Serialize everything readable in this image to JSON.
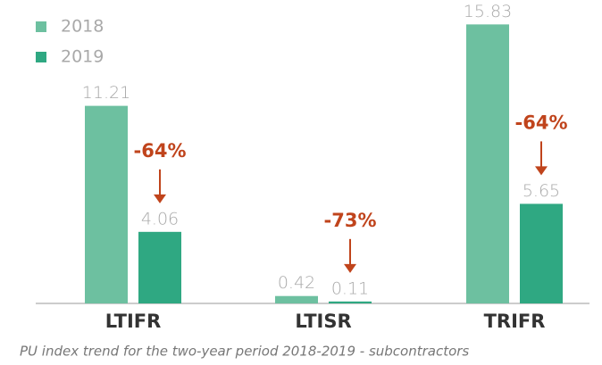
{
  "chart_data": {
    "type": "bar",
    "categories": [
      "LTIFR",
      "LTISR",
      "TRIFR"
    ],
    "series": [
      {
        "name": "2018",
        "color": "#6dc0a0",
        "values": [
          11.21,
          0.42,
          15.83
        ]
      },
      {
        "name": "2019",
        "color": "#2fa882",
        "values": [
          4.06,
          0.11,
          5.65
        ]
      }
    ],
    "annotations": [
      "-64%",
      "-73%",
      "-64%"
    ],
    "caption": "PU index trend for the two-year period 2018-2019 - subcontractors",
    "ylim": [
      0,
      16
    ]
  }
}
